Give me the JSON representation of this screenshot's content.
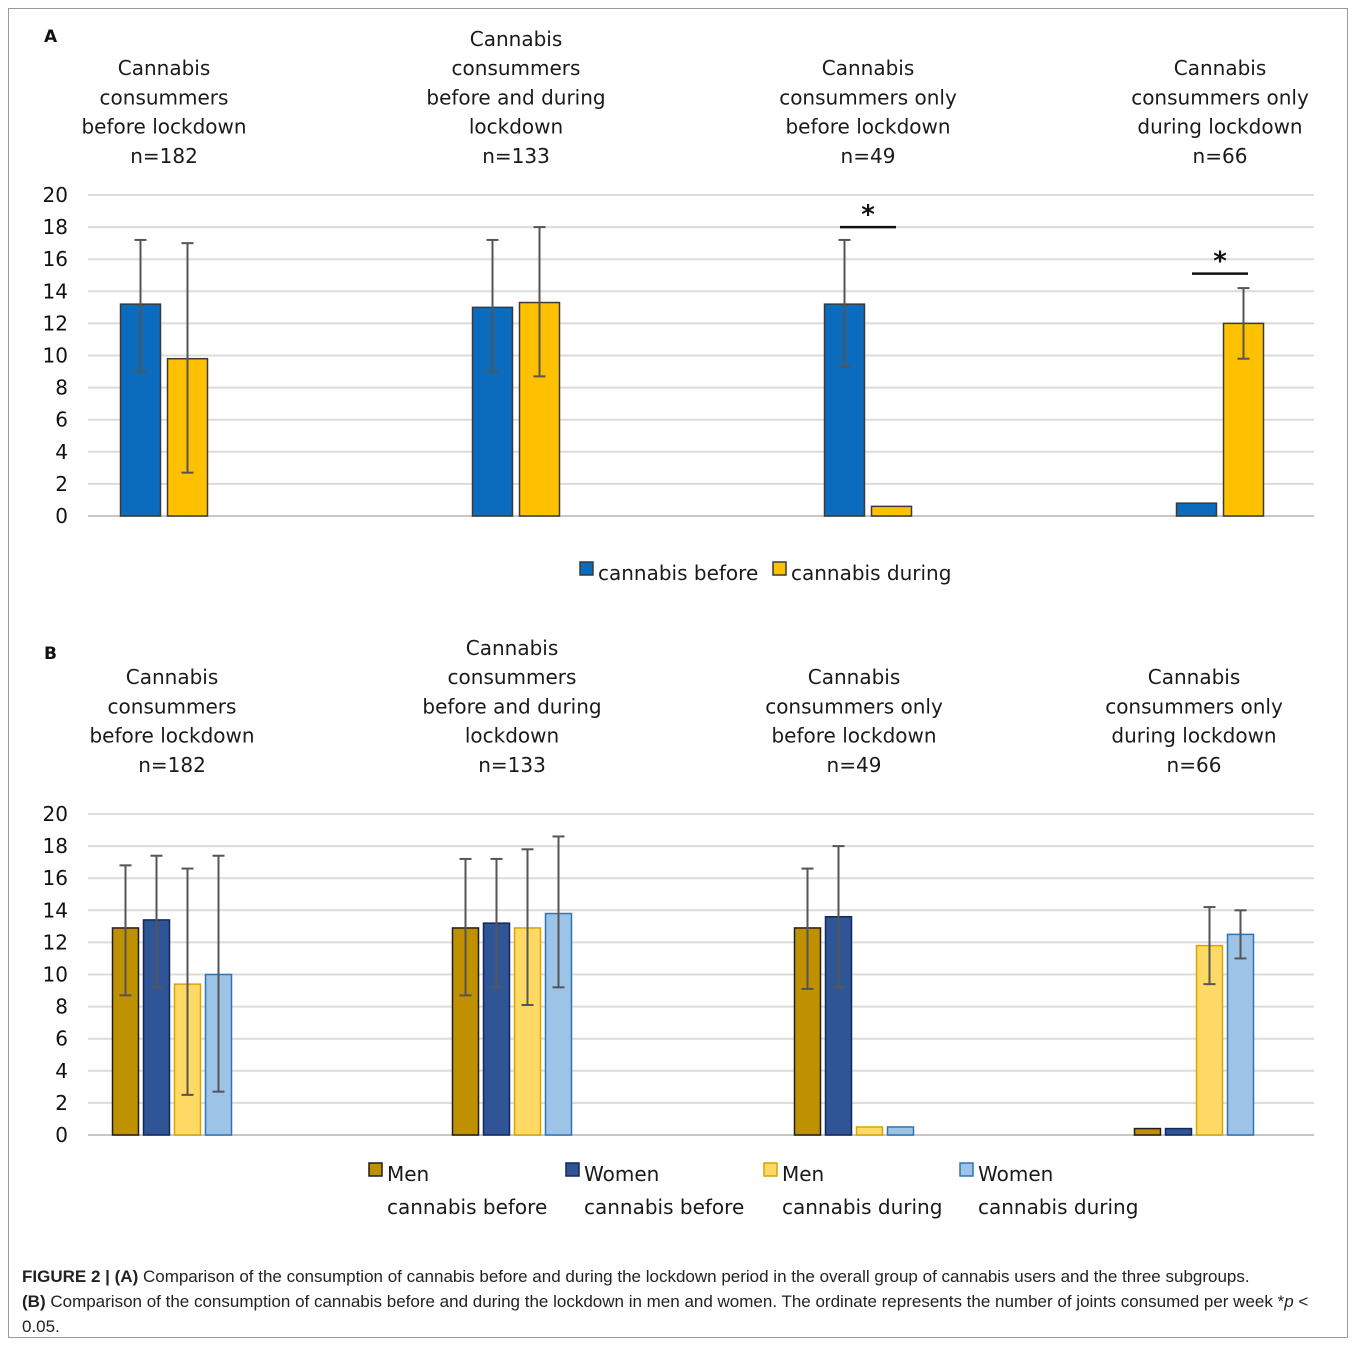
{
  "chart_data": [
    {
      "panel_label": "A",
      "type": "bar",
      "categories": [
        [
          "Cannabis",
          "consummers",
          "before lockdown",
          "n=182"
        ],
        [
          "Cannabis",
          "consummers",
          "before and during",
          "lockdown",
          "n=133"
        ],
        [
          "Cannabis",
          "consummers only",
          "before lockdown",
          "n=49"
        ],
        [
          "Cannabis",
          "consummers only",
          "during lockdown",
          "n=66"
        ]
      ],
      "yticks": [
        "0",
        "2",
        "4",
        "6",
        "8",
        "10",
        "12",
        "14",
        "16",
        "18",
        "20"
      ],
      "ylim": [
        0,
        20
      ],
      "grid": true,
      "legend_position": "bottom",
      "series": [
        {
          "name": "cannabis before",
          "color": "#0b6bbd",
          "values": [
            13.2,
            13.0,
            13.2,
            0.8
          ],
          "err_low": [
            9.0,
            9.0,
            9.3,
            null
          ],
          "err_high": [
            17.2,
            17.2,
            17.2,
            null
          ]
        },
        {
          "name": "cannabis during",
          "color": "#ffc000",
          "values": [
            9.8,
            13.3,
            0.6,
            12.0
          ],
          "err_low": [
            2.7,
            8.7,
            null,
            9.8
          ],
          "err_high": [
            17.0,
            18.0,
            null,
            14.2
          ]
        }
      ],
      "significance": [
        {
          "group": 2,
          "label": "*",
          "y": 18.0
        },
        {
          "group": 3,
          "label": "*",
          "y": 15.1
        }
      ]
    },
    {
      "panel_label": "B",
      "type": "bar",
      "categories": [
        [
          "Cannabis",
          "consummers",
          "before lockdown",
          "n=182"
        ],
        [
          "Cannabis",
          "consummers",
          "before and during",
          "lockdown",
          "n=133"
        ],
        [
          "Cannabis",
          "consummers only",
          "before lockdown",
          "n=49"
        ],
        [
          "Cannabis",
          "consummers only",
          "during lockdown",
          "n=66"
        ]
      ],
      "yticks": [
        "0",
        "2",
        "4",
        "6",
        "8",
        "10",
        "12",
        "14",
        "16",
        "18",
        "20"
      ],
      "ylim": [
        0,
        20
      ],
      "grid": true,
      "legend_position": "bottom",
      "series": [
        {
          "name": [
            "Men",
            "cannabis before"
          ],
          "color": "#bf9000",
          "border": "#1e1e1e",
          "values": [
            12.9,
            12.9,
            12.9,
            0.4
          ],
          "err_low": [
            8.7,
            8.7,
            9.1,
            null
          ],
          "err_high": [
            16.8,
            17.2,
            16.6,
            null
          ]
        },
        {
          "name": [
            "Women",
            "cannabis before"
          ],
          "color": "#2f5597",
          "border": "#16275a",
          "values": [
            13.4,
            13.2,
            13.6,
            0.4
          ],
          "err_low": [
            9.2,
            9.2,
            9.2,
            null
          ],
          "err_high": [
            17.4,
            17.2,
            18.0,
            null
          ]
        },
        {
          "name": [
            "Men",
            "cannabis during"
          ],
          "color": "#ffd966",
          "border": "#d9a400",
          "values": [
            9.4,
            12.9,
            0.5,
            11.8
          ],
          "err_low": [
            2.5,
            8.1,
            null,
            9.4
          ],
          "err_high": [
            16.6,
            17.8,
            null,
            14.2
          ]
        },
        {
          "name": [
            "Women",
            "cannabis during"
          ],
          "color": "#9dc3e6",
          "border": "#2e75b6",
          "values": [
            10.0,
            13.8,
            0.5,
            12.5
          ],
          "err_low": [
            2.7,
            9.2,
            null,
            11.0
          ],
          "err_high": [
            17.4,
            18.6,
            null,
            14.0
          ]
        }
      ]
    }
  ],
  "caption": {
    "fig_label": "FIGURE 2 |",
    "a_label": "(A)",
    "a_text": " Comparison of the consumption of cannabis before and during the lockdown period in the overall group of cannabis users and the three subgroups.",
    "b_label": "(B)",
    "b_text": " Comparison of the consumption of cannabis before and during the lockdown in men and women. The ordinate represents the number of joints consumed per week *",
    "p_symbol": "p",
    "p_tail": " < 0.05."
  }
}
